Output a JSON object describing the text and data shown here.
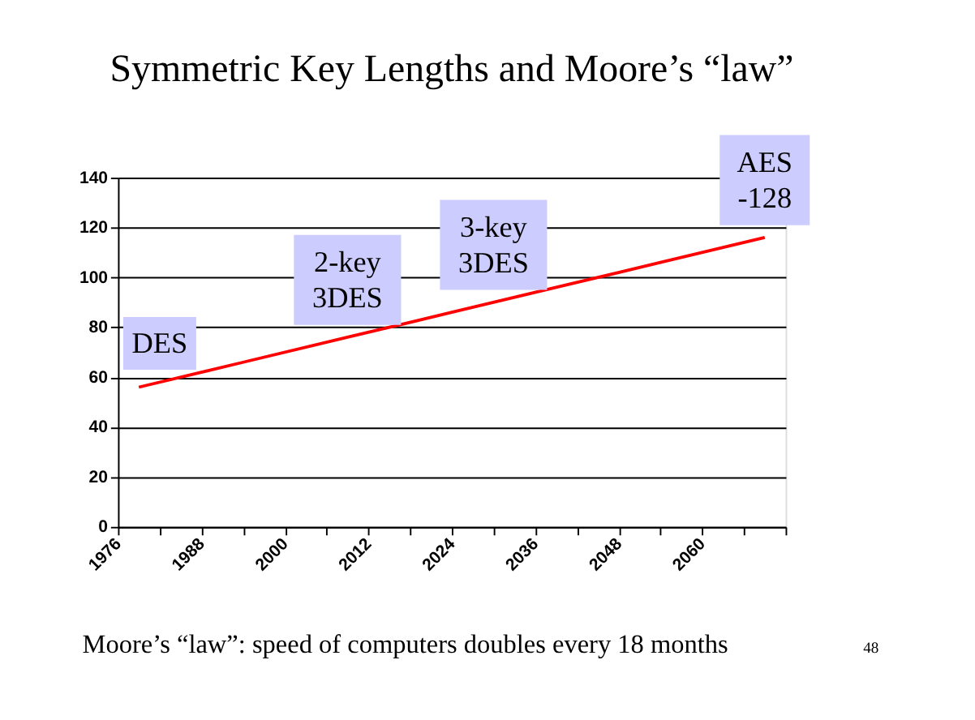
{
  "chart_data": {
    "type": "line",
    "title": "Symmetric Key Lengths and Moore’s “law”",
    "x": [
      1979,
      1994,
      2009,
      2024,
      2039,
      2054,
      2069
    ],
    "series": [
      {
        "color": "#ff0000",
        "values": [
          56,
          66,
          76,
          86,
          96,
          106,
          116
        ]
      }
    ],
    "xlim": [
      1976,
      2072
    ],
    "xticks": [
      1976,
      {
        "value": 1982,
        "label": null
      },
      1988,
      {
        "value": 1994,
        "label": null
      },
      2000,
      {
        "value": 2006,
        "label": null
      },
      2012,
      {
        "value": 2018,
        "label": null
      },
      2024,
      {
        "value": 2030,
        "label": null
      },
      2036,
      {
        "value": 2042,
        "label": null
      },
      2048,
      {
        "value": 2054,
        "label": null
      },
      2060,
      {
        "value": 2066,
        "label": null
      },
      {
        "value": 2072,
        "label": null
      }
    ],
    "ylim": [
      0,
      140
    ],
    "yticks": [
      0,
      20,
      40,
      60,
      80,
      100,
      120,
      140
    ],
    "grid": "y",
    "legend": false,
    "marker": "none",
    "line_style": "solid",
    "annotations": [
      {
        "text": "DES",
        "x": 1982,
        "y": 58
      },
      {
        "text": "2-key\n3DES",
        "x": 2009,
        "y": 76
      },
      {
        "text": "3-key\n3DES",
        "x": 2030,
        "y": 90
      },
      {
        "text": "AES\n-128",
        "x": 2069,
        "y": 116
      },
      "Moore’s “law”: speed of computers doubles every 18 months",
      "48"
    ]
  }
}
